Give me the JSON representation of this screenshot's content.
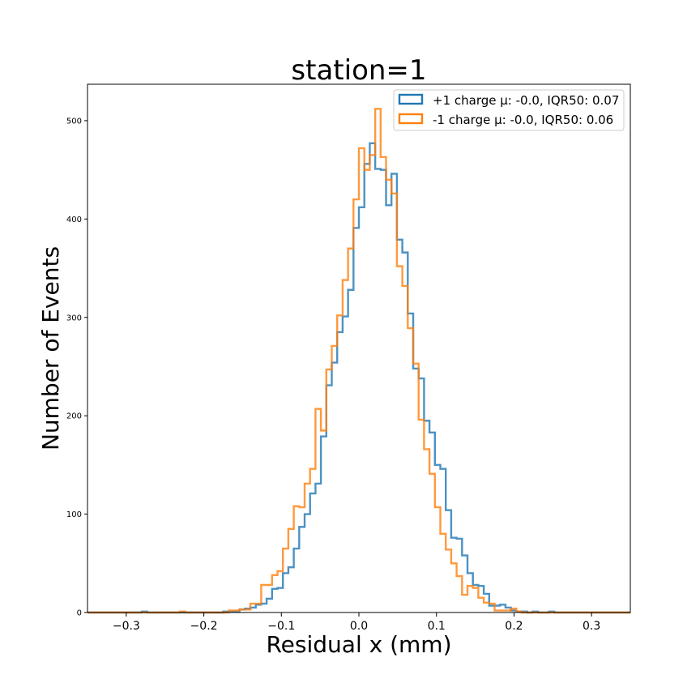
{
  "chart_data": {
    "type": "histogram",
    "title": "station=1",
    "xlabel": "Residual x (mm)",
    "ylabel": "Number of Events",
    "xlim": [
      -0.35,
      0.35
    ],
    "ylim": [
      0,
      537
    ],
    "xticks": [
      -0.3,
      -0.2,
      -0.1,
      0.0,
      0.1,
      0.2,
      0.3
    ],
    "xtick_labels": [
      "−0.3",
      "−0.2",
      "−0.1",
      "0.0",
      "0.1",
      "0.2",
      "0.3"
    ],
    "yticks": [
      0,
      100,
      200,
      300,
      400,
      500
    ],
    "ytick_labels": [
      "0",
      "100",
      "200",
      "300",
      "400",
      "500"
    ],
    "grid": false,
    "legend_position": "top-right",
    "bin_edges_start": -0.35,
    "bin_width": 0.007,
    "series": [
      {
        "name": "+1 charge μ: -0.0, IQR50: 0.07",
        "color": "#1f77b4",
        "values": [
          0,
          0,
          0,
          0,
          0,
          0,
          0,
          0,
          0,
          0,
          1,
          0,
          0,
          0,
          0,
          0,
          0,
          0,
          0,
          0,
          0,
          0,
          0,
          0,
          0,
          1,
          1,
          1,
          3,
          4,
          5,
          8,
          9,
          14,
          24,
          25,
          40,
          46,
          65,
          87,
          100,
          121,
          131,
          179,
          231,
          254,
          285,
          301,
          328,
          391,
          412,
          456,
          477,
          451,
          450,
          414,
          446,
          379,
          366,
          304,
          248,
          238,
          195,
          183,
          150,
          146,
          104,
          76,
          75,
          58,
          40,
          28,
          27,
          19,
          7,
          7,
          8,
          5,
          2,
          1,
          1,
          0,
          1,
          0,
          0,
          1,
          0,
          0,
          0,
          0,
          0,
          0,
          0,
          0,
          0,
          0,
          0,
          0,
          0,
          0
        ]
      },
      {
        "name": "-1 charge μ: -0.0, IQR50: 0.06",
        "color": "#ff7f0e",
        "values": [
          0,
          0,
          0,
          0,
          0,
          0,
          0,
          0,
          0,
          0,
          0,
          0,
          0,
          0,
          0,
          0,
          0,
          1,
          0,
          0,
          0,
          0,
          0,
          0,
          0,
          0,
          2,
          2,
          3,
          3,
          9,
          9,
          28,
          28,
          38,
          42,
          65,
          85,
          108,
          107,
          131,
          146,
          207,
          185,
          247,
          271,
          302,
          338,
          370,
          420,
          472,
          450,
          465,
          512,
          463,
          440,
          426,
          352,
          332,
          289,
          253,
          196,
          166,
          141,
          107,
          80,
          64,
          50,
          37,
          18,
          27,
          25,
          15,
          10,
          9,
          2,
          2,
          2,
          4,
          1,
          0,
          0,
          0,
          0,
          0,
          0,
          0,
          0,
          0,
          0,
          0,
          0,
          0,
          0,
          0,
          0,
          0,
          0,
          0,
          0
        ]
      }
    ]
  }
}
